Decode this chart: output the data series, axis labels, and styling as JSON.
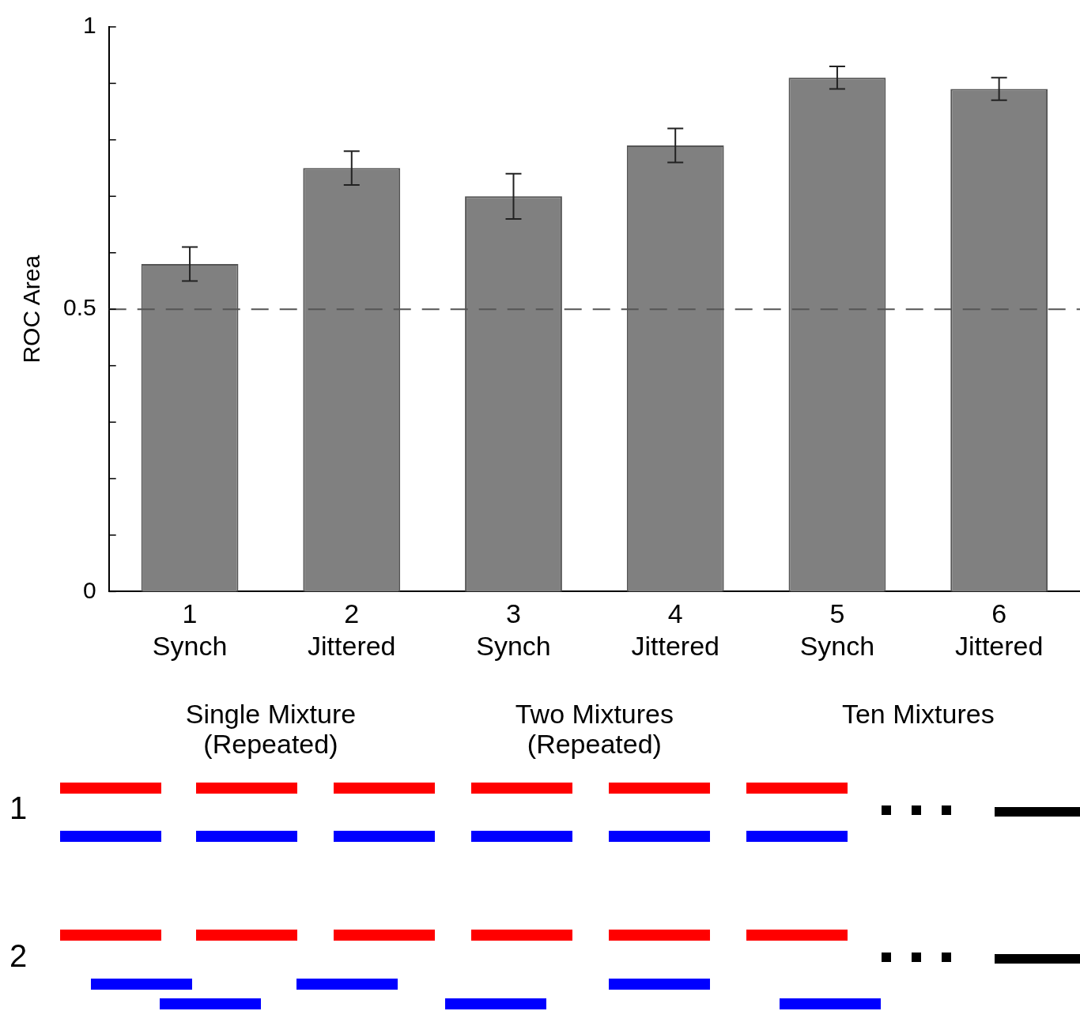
{
  "chart_data": {
    "type": "bar",
    "ylabel": "ROC Area",
    "categories": [
      "1\nSynch",
      "2\nJittered",
      "3\nSynch",
      "4\nJittered",
      "5\nSynch",
      "6\nJittered"
    ],
    "values": [
      0.58,
      0.75,
      0.7,
      0.79,
      0.91,
      0.89
    ],
    "errors": [
      0.03,
      0.03,
      0.04,
      0.03,
      0.02,
      0.02
    ],
    "color": "#808080",
    "ylim": [
      0,
      1
    ],
    "yticks": [
      0,
      {
        "value": 0.1,
        "label": null
      },
      {
        "value": 0.2,
        "label": null
      },
      {
        "value": 0.3,
        "label": null
      },
      {
        "value": 0.4,
        "label": null
      },
      0.5,
      {
        "value": 0.6,
        "label": null
      },
      {
        "value": 0.7,
        "label": null
      },
      {
        "value": 0.8,
        "label": null
      },
      {
        "value": 0.9,
        "label": null
      },
      1
    ],
    "ref_lines": [
      {
        "axis": "y",
        "value": 0.5,
        "color": "#555555",
        "line_style": "dashed"
      }
    ],
    "annotations": [
      "Single Mixture\n(Repeated)",
      "Two Mixtures\n(Repeated)",
      "Ten Mixtures",
      "1",
      "2"
    ]
  }
}
